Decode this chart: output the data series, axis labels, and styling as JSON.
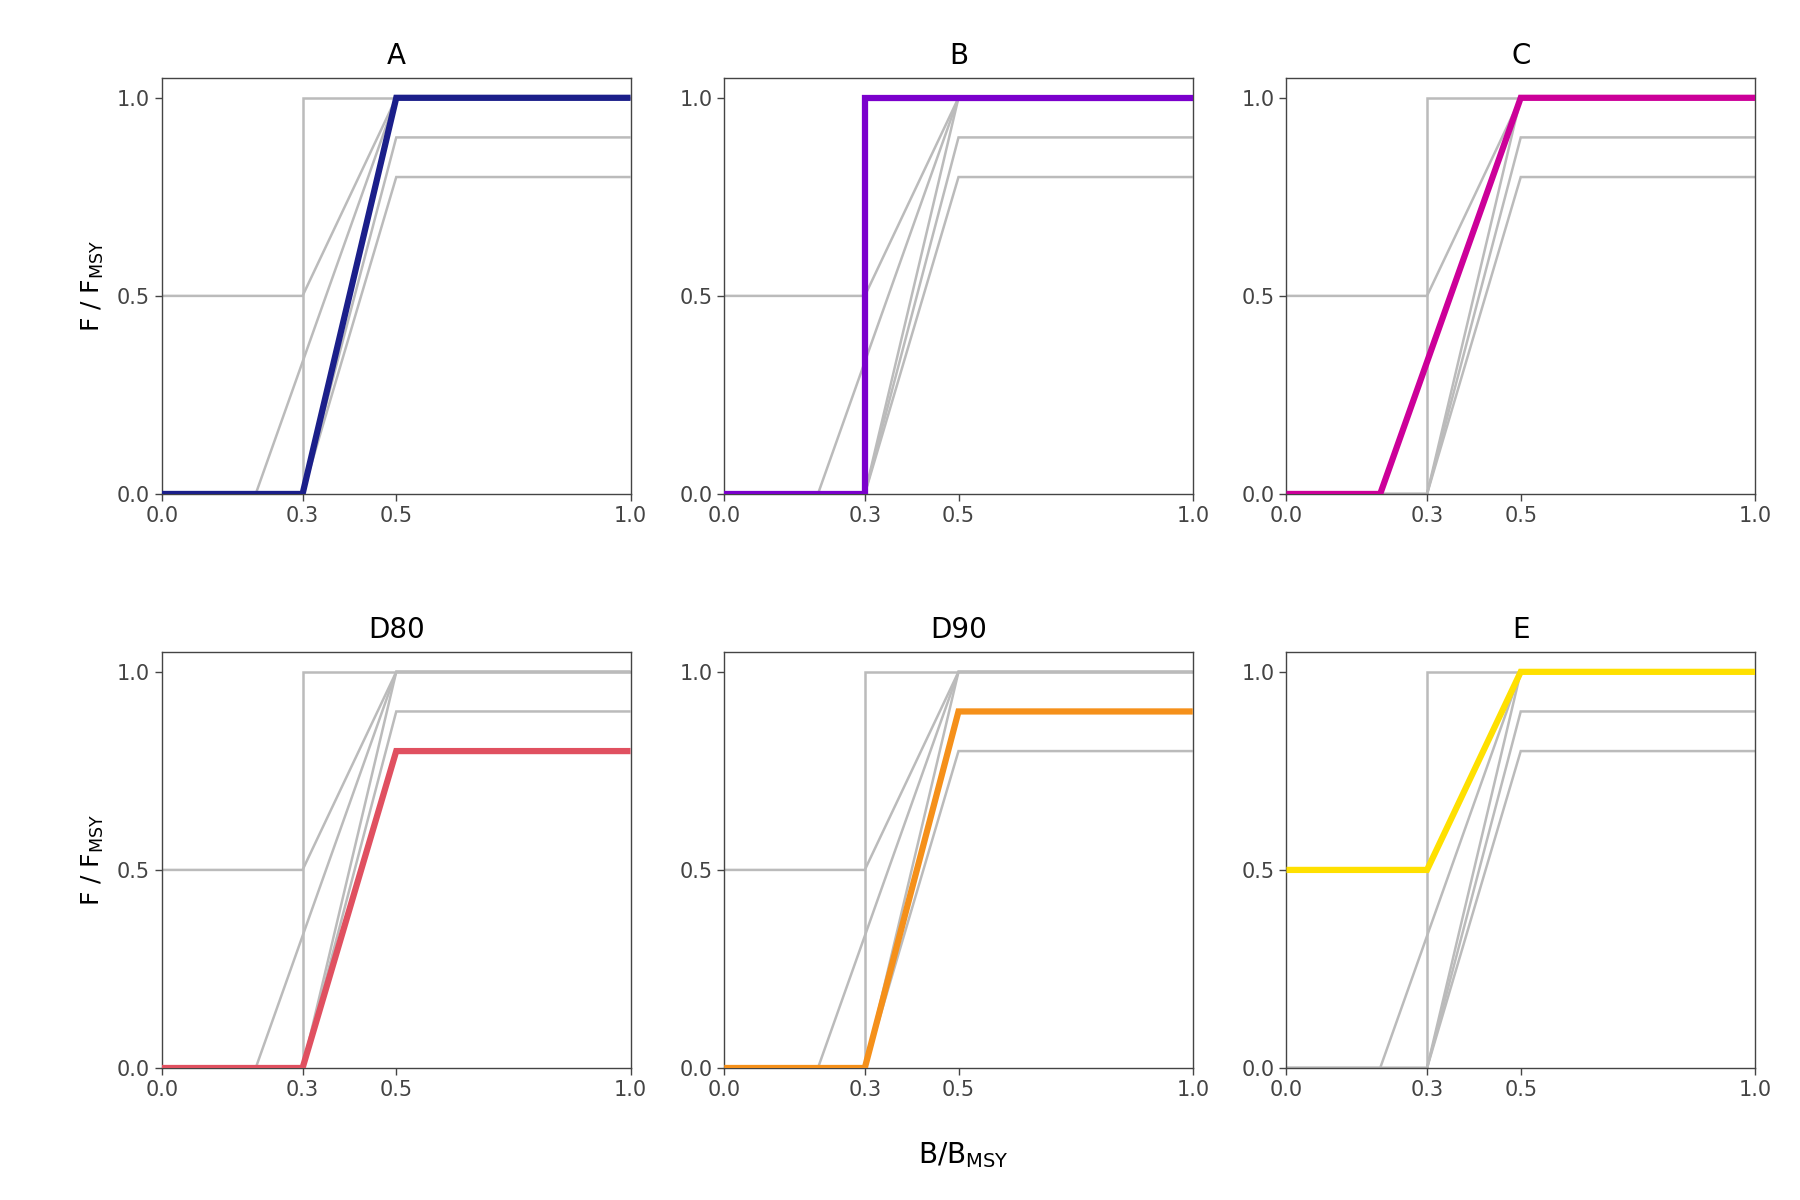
{
  "panels": [
    {
      "label": "A",
      "color": "#1b1f8a",
      "hcr": {
        "blim": 0.3,
        "btrigger": 0.5,
        "ftarget": 1.0,
        "fmin": 0.0
      }
    },
    {
      "label": "B",
      "color": "#7b00cc",
      "hcr": {
        "blim": 0.3,
        "btrigger": 0.3,
        "ftarget": 1.0,
        "fmin": 0.0
      }
    },
    {
      "label": "C",
      "color": "#cc0099",
      "hcr": {
        "blim": 0.2,
        "btrigger": 0.5,
        "ftarget": 1.0,
        "fmin": 0.0
      }
    },
    {
      "label": "D80",
      "color": "#e05060",
      "hcr": {
        "blim": 0.3,
        "btrigger": 0.5,
        "ftarget": 0.8,
        "fmin": 0.0
      }
    },
    {
      "label": "D90",
      "color": "#f5901a",
      "hcr": {
        "blim": 0.3,
        "btrigger": 0.5,
        "ftarget": 0.9,
        "fmin": 0.0
      }
    },
    {
      "label": "E",
      "color": "#ffe000",
      "hcr": {
        "blim": 0.3,
        "btrigger": 0.5,
        "ftarget": 1.0,
        "fmin": 0.5
      }
    }
  ],
  "all_hcrs": [
    {
      "blim": 0.3,
      "btrigger": 0.5,
      "ftarget": 1.0,
      "fmin": 0.0
    },
    {
      "blim": 0.3,
      "btrigger": 0.3,
      "ftarget": 1.0,
      "fmin": 0.0
    },
    {
      "blim": 0.2,
      "btrigger": 0.5,
      "ftarget": 1.0,
      "fmin": 0.0
    },
    {
      "blim": 0.3,
      "btrigger": 0.5,
      "ftarget": 0.8,
      "fmin": 0.0
    },
    {
      "blim": 0.3,
      "btrigger": 0.5,
      "ftarget": 0.9,
      "fmin": 0.0
    },
    {
      "blim": 0.3,
      "btrigger": 0.5,
      "ftarget": 1.0,
      "fmin": 0.5
    }
  ],
  "gray_color": "#bbbbbb",
  "gray_lw": 1.8,
  "highlight_lw": 4.5,
  "xlabel": "B/B$_{\\mathregular{MSY}}$",
  "ylabel": "F / F$_{\\mathregular{MSY}}$",
  "xlim": [
    0.0,
    1.0
  ],
  "ylim": [
    0.0,
    1.05
  ],
  "xticks": [
    0.0,
    0.3,
    0.5,
    1.0
  ],
  "yticks": [
    0.0,
    0.5,
    1.0
  ],
  "background_color": "#ffffff",
  "title_fontsize": 20,
  "label_fontsize": 18,
  "tick_fontsize": 15
}
